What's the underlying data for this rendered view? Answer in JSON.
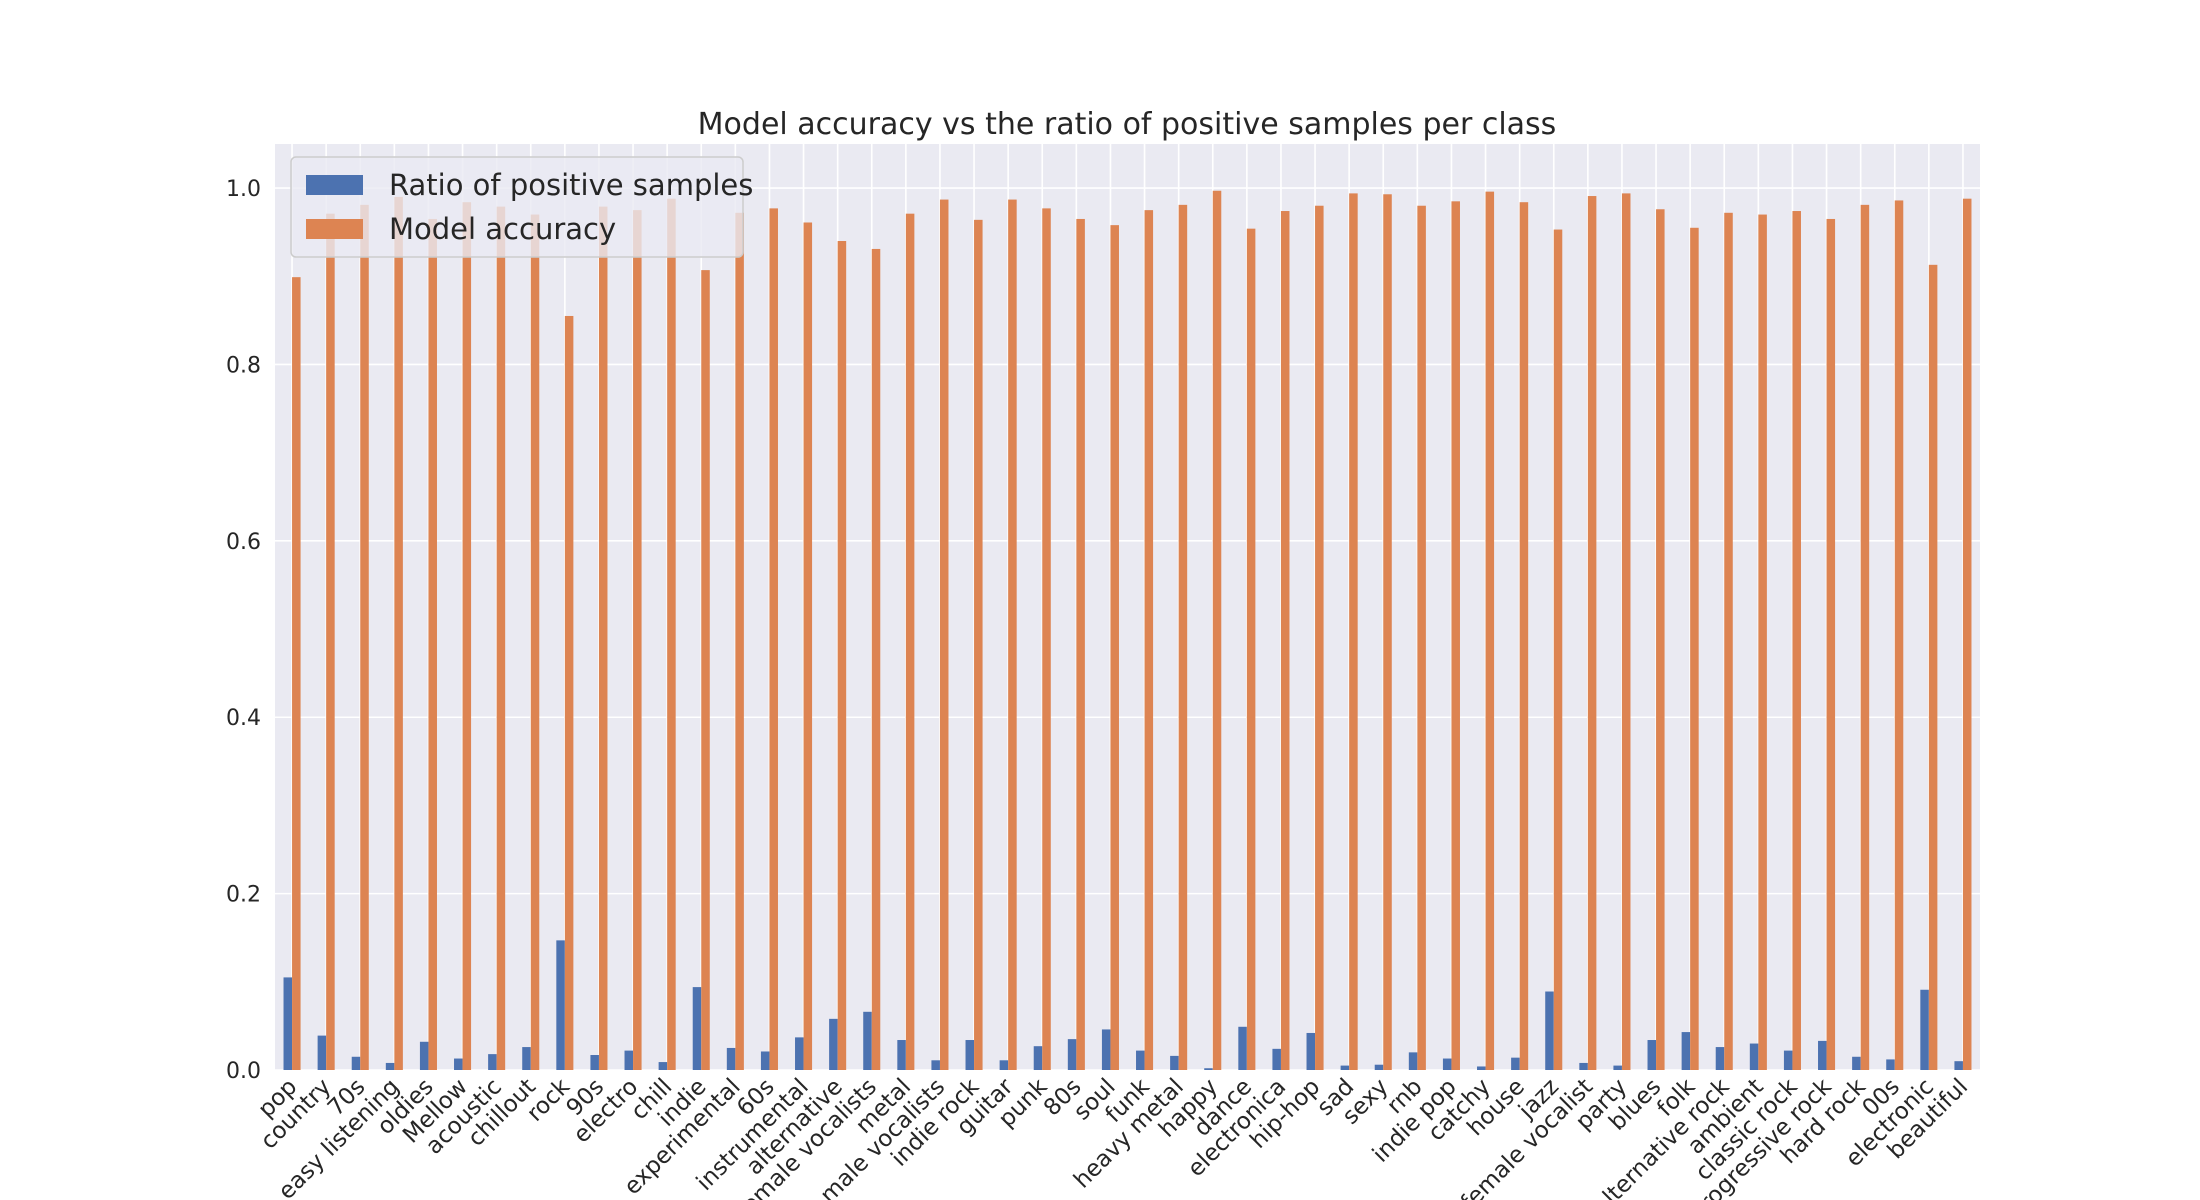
{
  "chart_data": {
    "type": "bar",
    "title": "Model accuracy vs the ratio of positive samples per class",
    "xlabel": "",
    "ylabel": "",
    "ylim": [
      0,
      1.05
    ],
    "yticks": [
      "0.0",
      "0.2",
      "0.4",
      "0.6",
      "0.8",
      "1.0"
    ],
    "grid": true,
    "legend": "top-left",
    "categories": [
      "pop",
      "country",
      "70s",
      "easy listening",
      "oldies",
      "Mellow",
      "acoustic",
      "chillout",
      "rock",
      "90s",
      "electro",
      "chill",
      "indie",
      "experimental",
      "60s",
      "instrumental",
      "alternative",
      "female vocalists",
      "metal",
      "male vocalists",
      "indie rock",
      "guitar",
      "punk",
      "80s",
      "soul",
      "funk",
      "heavy metal",
      "happy",
      "dance",
      "electronica",
      "hip-hop",
      "sad",
      "sexy",
      "rnb",
      "indie pop",
      "catchy",
      "house",
      "jazz",
      "female vocalist",
      "party",
      "blues",
      "folk",
      "alternative rock",
      "ambient",
      "classic rock",
      "progressive rock",
      "hard rock",
      "00s",
      "electronic",
      "beautiful"
    ],
    "series": [
      {
        "name": "Ratio of positive samples",
        "color": "#4c72b0",
        "values": [
          0.105,
          0.039,
          0.015,
          0.008,
          0.032,
          0.013,
          0.018,
          0.026,
          0.147,
          0.017,
          0.022,
          0.009,
          0.094,
          0.025,
          0.021,
          0.037,
          0.058,
          0.066,
          0.034,
          0.011,
          0.034,
          0.011,
          0.027,
          0.035,
          0.046,
          0.022,
          0.016,
          0.002,
          0.049,
          0.024,
          0.042,
          0.005,
          0.006,
          0.02,
          0.013,
          0.004,
          0.014,
          0.089,
          0.008,
          0.005,
          0.034,
          0.043,
          0.026,
          0.03,
          0.022,
          0.033,
          0.015,
          0.012,
          0.091,
          0.01
        ]
      },
      {
        "name": "Model accuracy",
        "color": "#dd8452",
        "values": [
          0.899,
          0.971,
          0.981,
          0.99,
          0.965,
          0.984,
          0.979,
          0.97,
          0.855,
          0.979,
          0.975,
          0.988,
          0.907,
          0.972,
          0.977,
          0.961,
          0.94,
          0.931,
          0.971,
          0.987,
          0.964,
          0.987,
          0.977,
          0.965,
          0.958,
          0.975,
          0.981,
          0.997,
          0.954,
          0.974,
          0.98,
          0.994,
          0.993,
          0.98,
          0.985,
          0.996,
          0.984,
          0.953,
          0.991,
          0.994,
          0.976,
          0.955,
          0.972,
          0.97,
          0.974,
          0.965,
          0.981,
          0.986,
          0.913,
          0.988
        ]
      }
    ]
  }
}
